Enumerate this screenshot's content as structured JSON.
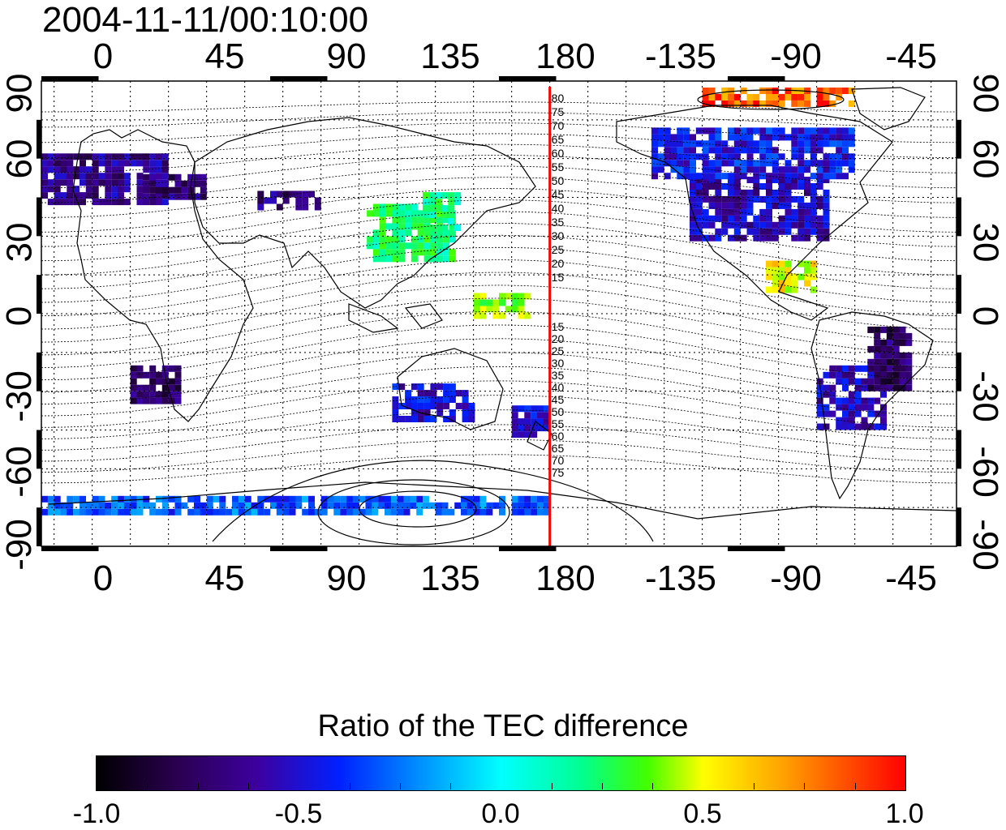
{
  "timestamp": "2004-11-11/00:10:00",
  "axes": {
    "top_ticks": [
      "0",
      "45",
      "90",
      "135",
      "180",
      "-135",
      "-90",
      "-45"
    ],
    "bottom_ticks": [
      "0",
      "45",
      "90",
      "135",
      "180",
      "-135",
      "-90",
      "-45"
    ],
    "left_ticks": [
      "90",
      "60",
      "30",
      "0",
      "-30",
      "-60",
      "-90"
    ],
    "right_ticks": [
      "90",
      "60",
      "30",
      "0",
      "-30",
      "-60",
      "-90"
    ],
    "longitude_range_deg": [
      -20,
      340
    ],
    "latitude_range_deg": [
      -90,
      90
    ]
  },
  "meridian_marker": {
    "longitude_deg": 180,
    "color": "#ff0000",
    "labels_upper": [
      "80",
      "75",
      "70",
      "65",
      "60",
      "55",
      "50",
      "45",
      "40",
      "35",
      "30",
      "25",
      "20",
      "15"
    ],
    "labels_lower": [
      "15",
      "20",
      "25",
      "30",
      "35",
      "40",
      "45",
      "50",
      "55",
      "60",
      "65",
      "70",
      "75"
    ]
  },
  "colorbar": {
    "title": "Ratio of the TEC difference",
    "labels": [
      "-1.0",
      "-0.5",
      "0.0",
      "0.5",
      "1.0"
    ],
    "range": [
      -1.0,
      1.0
    ],
    "palette": [
      "#000000",
      "#2a0050",
      "#3d00a0",
      "#0020ff",
      "#0090ff",
      "#00ffff",
      "#00ff90",
      "#40ff00",
      "#ffff00",
      "#ffa000",
      "#ff0000"
    ]
  },
  "tec_regions": [
    {
      "name": "europe",
      "lon": [
        -20,
        30
      ],
      "lat": [
        42,
        62
      ],
      "value": -0.65
    },
    {
      "name": "eastern-europe",
      "lon": [
        20,
        45
      ],
      "lat": [
        44,
        54
      ],
      "value": -0.7
    },
    {
      "name": "central-asia",
      "lon": [
        65,
        90
      ],
      "lat": [
        40,
        46
      ],
      "value": -0.7
    },
    {
      "name": "east-asia",
      "lon": [
        108,
        142
      ],
      "lat": [
        20,
        42
      ],
      "value": 0.25
    },
    {
      "name": "japan",
      "lon": [
        130,
        145
      ],
      "lat": [
        32,
        46
      ],
      "value": 0.2
    },
    {
      "name": "north-america",
      "lon": [
        -125,
        -72
      ],
      "lat": [
        28,
        52
      ],
      "value": -0.55
    },
    {
      "name": "canada",
      "lon": [
        -140,
        -60
      ],
      "lat": [
        52,
        70
      ],
      "value": -0.45
    },
    {
      "name": "southern-africa",
      "lon": [
        15,
        35
      ],
      "lat": [
        -35,
        -22
      ],
      "value": -0.75
    },
    {
      "name": "australia",
      "lon": [
        118,
        150
      ],
      "lat": [
        -42,
        -28
      ],
      "value": -0.5
    },
    {
      "name": "new-zealand",
      "lon": [
        165,
        180
      ],
      "lat": [
        -48,
        -36
      ],
      "value": -0.5
    },
    {
      "name": "pacific-east",
      "lon": [
        150,
        172
      ],
      "lat": [
        -2,
        8
      ],
      "value": 0.45
    },
    {
      "name": "central-america",
      "lon": [
        -95,
        -75
      ],
      "lat": [
        8,
        20
      ],
      "value": 0.6
    },
    {
      "name": "south-america",
      "lon": [
        -75,
        -48
      ],
      "lat": [
        -45,
        -20
      ],
      "value": -0.55
    },
    {
      "name": "brazil",
      "lon": [
        -55,
        -38
      ],
      "lat": [
        -30,
        -5
      ],
      "value": -0.75
    },
    {
      "name": "antarctic-coast",
      "lon": [
        -20,
        180
      ],
      "lat": [
        -78,
        -72
      ],
      "value": -0.3
    },
    {
      "name": "arctic-cap",
      "lon": [
        -120,
        -60
      ],
      "lat": [
        80,
        86
      ],
      "value": 0.9
    }
  ]
}
